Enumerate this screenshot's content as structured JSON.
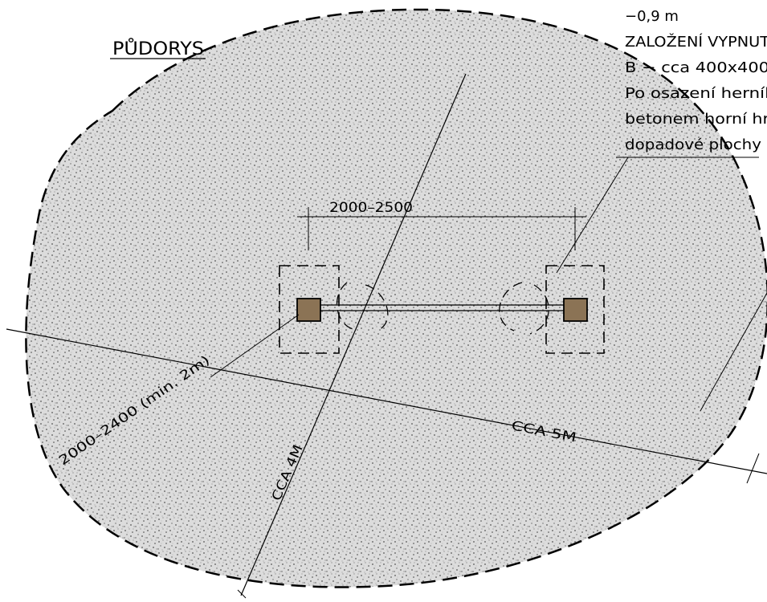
{
  "title": "PŮDORYS",
  "notes": [
    "−0,9 m",
    "ZALOŽENÍ VYPNUT",
    "B − cca 400x400",
    "Po osazení herníl",
    "betonem horní hr",
    "dopadové plochy"
  ],
  "dimensions": {
    "post_spacing": "2000–2500",
    "clearance": "2000–2400 (min. 2m)",
    "width_axis": "CCA 4M",
    "length_axis": "CCA 5M"
  },
  "colors": {
    "gravel_fill": "#d9d9d9",
    "post_fill": "#8b7355",
    "line": "#000000"
  }
}
